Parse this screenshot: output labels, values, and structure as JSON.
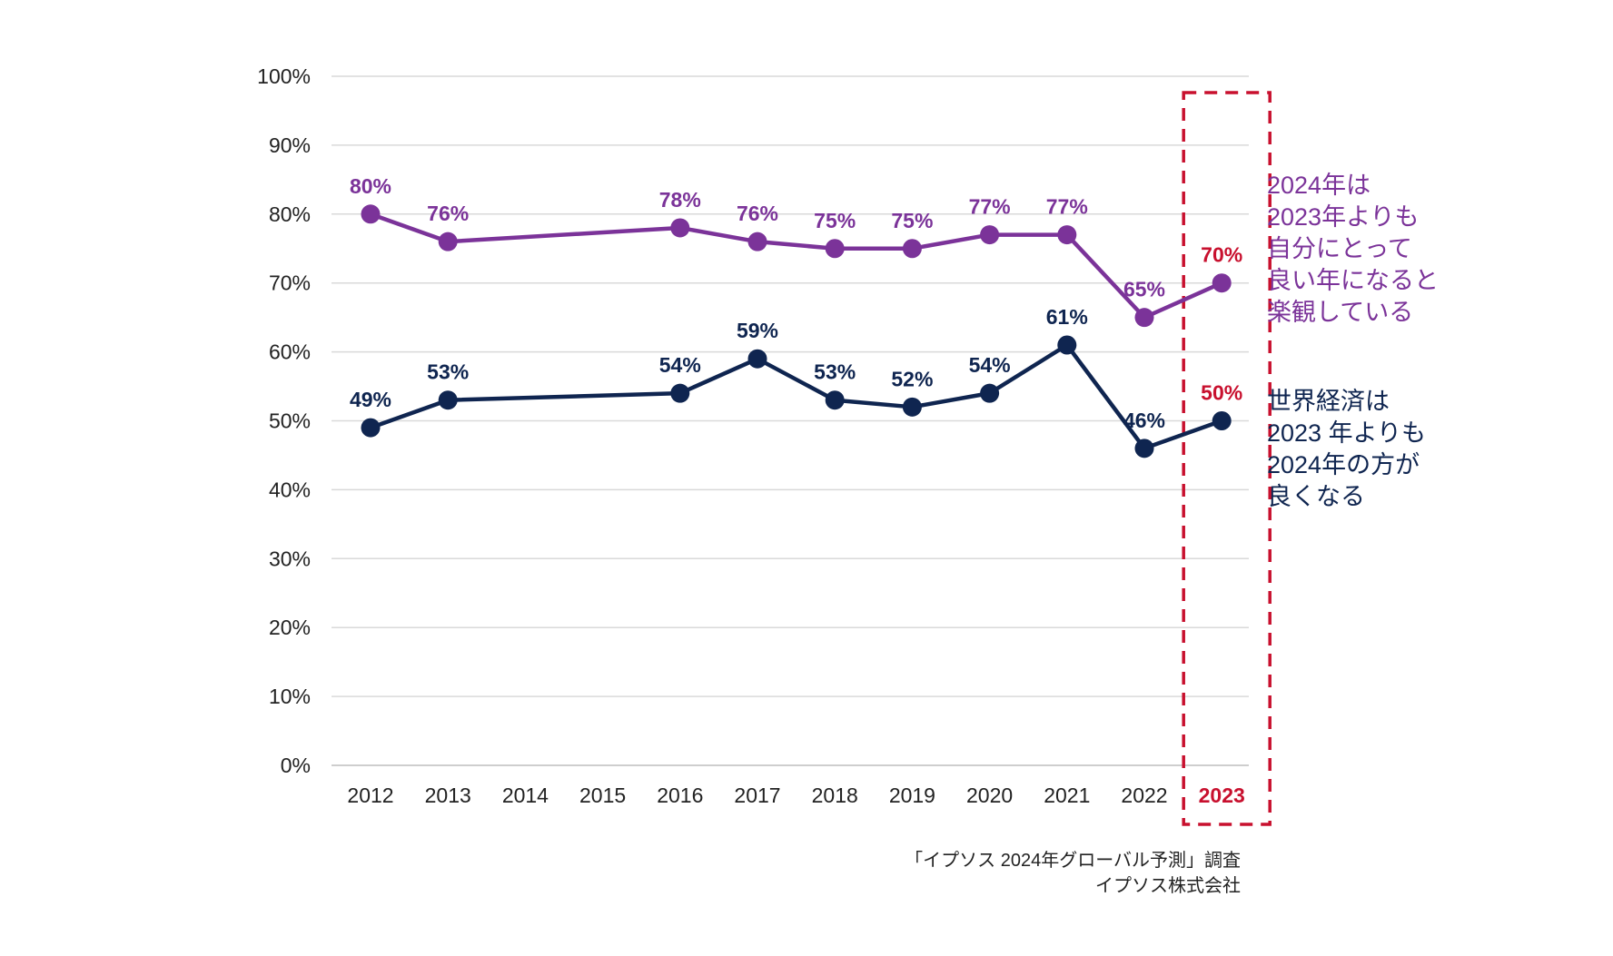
{
  "chart_data": {
    "type": "line",
    "categories": [
      "2012",
      "2013",
      "2014",
      "2015",
      "2016",
      "2017",
      "2018",
      "2019",
      "2020",
      "2021",
      "2022",
      "2023"
    ],
    "y_tick_labels": [
      "0%",
      "10%",
      "20%",
      "30%",
      "40%",
      "50%",
      "60%",
      "70%",
      "80%",
      "90%",
      "100%"
    ],
    "ylim": [
      0,
      100
    ],
    "grid": true,
    "series": [
      {
        "name": "2024年は2023年よりも自分にとって良い年になると楽観している",
        "color": "#7B3399",
        "values": [
          80,
          76,
          null,
          null,
          78,
          76,
          75,
          75,
          77,
          77,
          65,
          70
        ],
        "labels": [
          "80%",
          "76%",
          null,
          null,
          "78%",
          "76%",
          "75%",
          "75%",
          "77%",
          "77%",
          "65%",
          "70%"
        ]
      },
      {
        "name": "世界経済は2023 年よりも2024年の方が良くなる",
        "color": "#0F2550",
        "values": [
          49,
          53,
          null,
          null,
          54,
          59,
          53,
          52,
          54,
          61,
          46,
          50
        ],
        "labels": [
          "49%",
          "53%",
          null,
          null,
          "54%",
          "59%",
          "53%",
          "52%",
          "54%",
          "61%",
          "46%",
          "50%"
        ]
      }
    ],
    "highlight": {
      "category": "2023",
      "color": "#C8102E"
    }
  },
  "annotations": {
    "purple_note": [
      "2024年は",
      "2023年よりも",
      "自分にとって",
      "良い年になると",
      "楽観している"
    ],
    "navy_note": [
      "世界経済は",
      "2023 年よりも",
      "2024年の方が",
      "良くなる"
    ]
  },
  "source": {
    "line1": "「イプソス 2024年グローバル予測」調査",
    "line2": "イプソス株式会社"
  }
}
